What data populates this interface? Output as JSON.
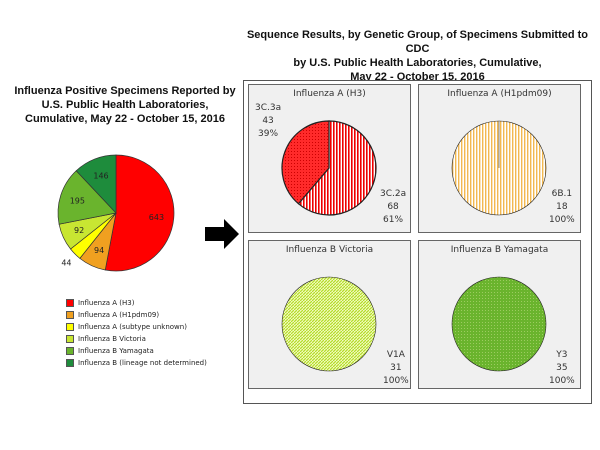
{
  "left": {
    "title_lines": [
      "Influenza Positive Specimens Reported by",
      "U.S. Public Health Laboratories,",
      "Cumulative, May 22 - October 15, 2016"
    ]
  },
  "right": {
    "title_lines": [
      "Sequence Results, by Genetic Group, of Specimens Submitted to CDC",
      "by U.S. Public Health Laboratories, Cumulative,",
      "May 22 - October 15, 2016"
    ]
  },
  "chart_data": [
    {
      "type": "pie",
      "title": "Influenza Positive Specimens Reported by U.S. Public Health Laboratories, Cumulative, May 22 - October 15, 2016",
      "legend": "bottom",
      "categories": [
        "Influenza A (H3)",
        "Influenza A (H1pdm09)",
        "Influenza A (subtype unknown)",
        "Influenza B Victoria",
        "Influenza B Yamagata",
        "Influenza B (lineage not determined)"
      ],
      "values": [
        643,
        94,
        44,
        92,
        195,
        146
      ],
      "colors": [
        "#ff0000",
        "#f0a020",
        "#ffff00",
        "#c8e632",
        "#6ab42d",
        "#1e8c3c"
      ]
    },
    {
      "type": "pie",
      "title": "Influenza A (H3)",
      "slices": [
        {
          "label": "3C.2a",
          "count": 68,
          "percent": "61%"
        },
        {
          "label": "3C.3a",
          "count": 43,
          "percent": "39%"
        }
      ],
      "color": "#ff2020"
    },
    {
      "type": "pie",
      "title": "Influenza A (H1pdm09)",
      "slices": [
        {
          "label": "6B.1",
          "count": 18,
          "percent": "100%"
        }
      ],
      "color": "#f5c060"
    },
    {
      "type": "pie",
      "title": "Influenza B Victoria",
      "slices": [
        {
          "label": "V1A",
          "count": 31,
          "percent": "100%"
        }
      ],
      "color": "#d8f060"
    },
    {
      "type": "pie",
      "title": "Influenza B Yamagata",
      "slices": [
        {
          "label": "Y3",
          "count": 35,
          "percent": "100%"
        }
      ],
      "color": "#6ab42d"
    }
  ]
}
